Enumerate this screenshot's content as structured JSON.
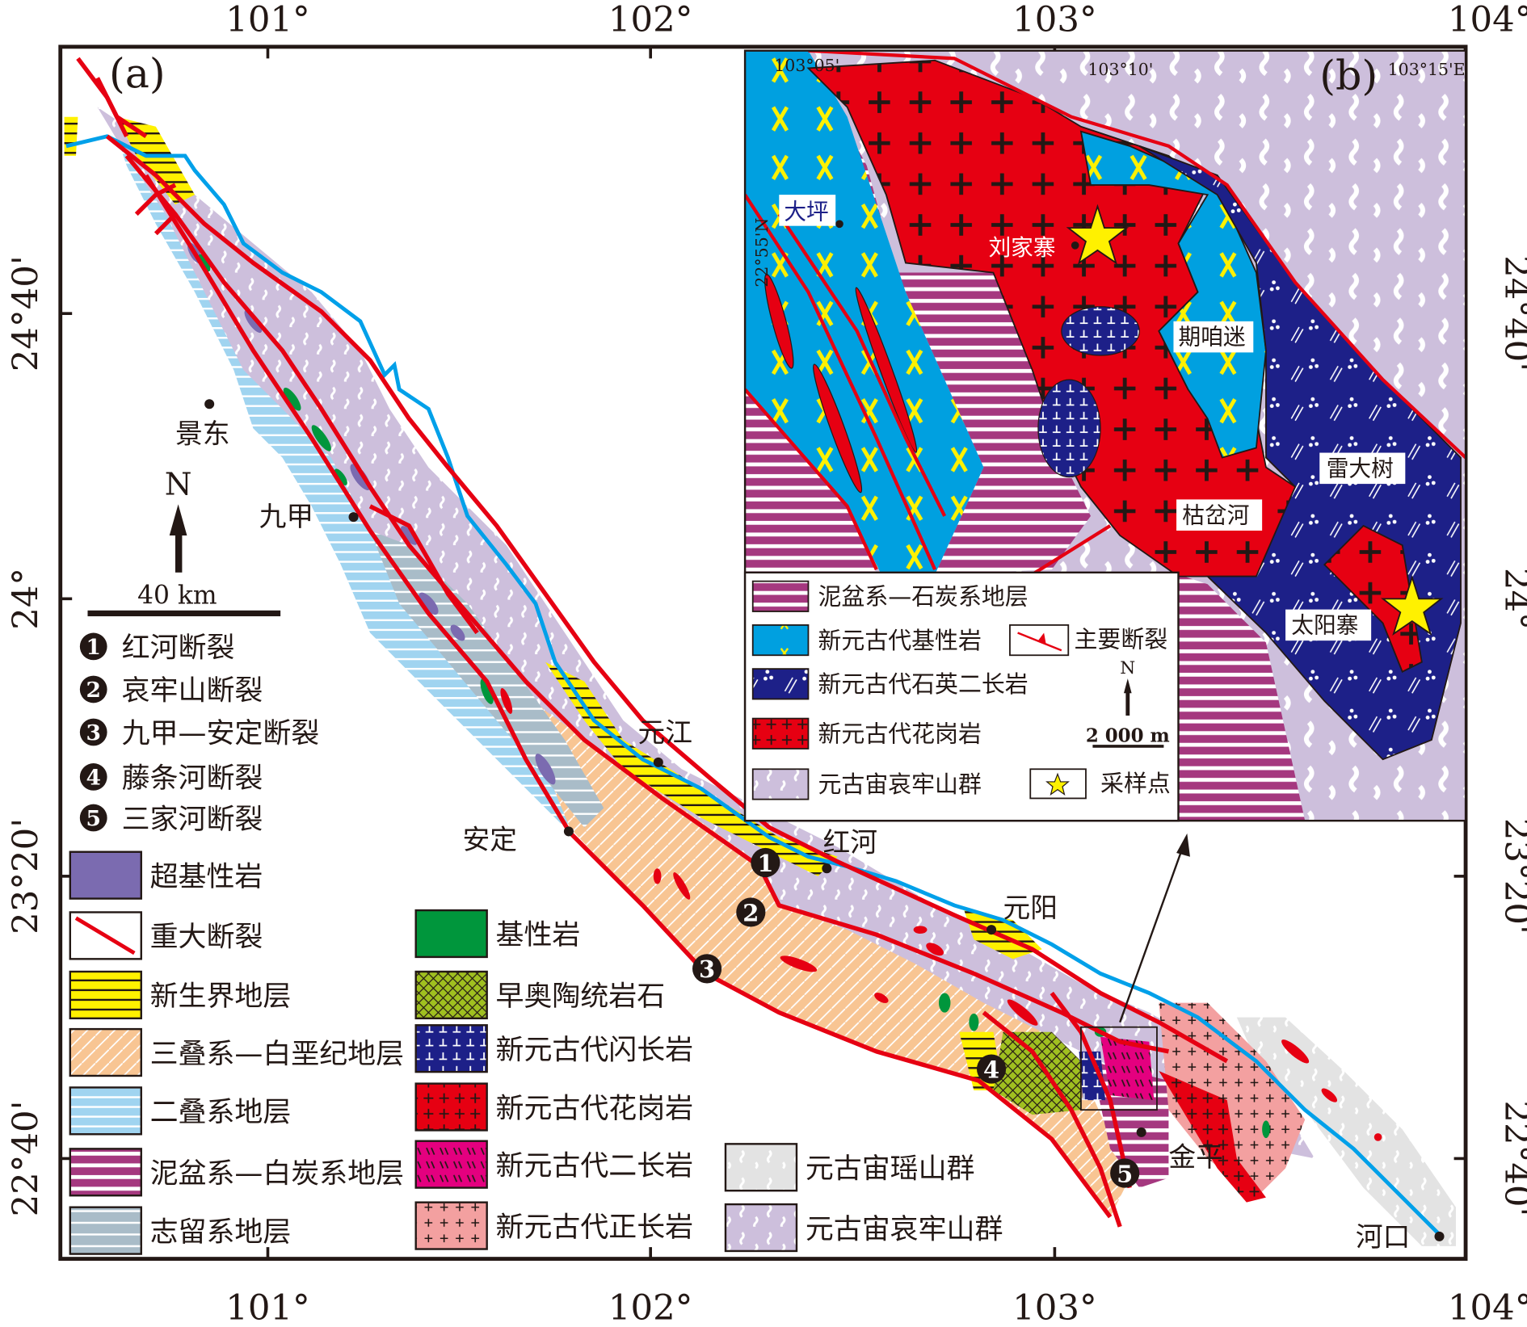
{
  "panel_a_label": "(a)",
  "panel_b_label": "(b)",
  "main_map": {
    "lon_ticks": [
      "101°",
      "102°",
      "103°",
      "104°"
    ],
    "lat_ticks": [
      "24°40'",
      "24°",
      "23°20'",
      "22°40'"
    ],
    "north": "N",
    "scale": "40 km",
    "places": {
      "jingdong": "景东",
      "jiujia": "九甲",
      "yuanjiang": "元江",
      "anding": "安定",
      "honghe": "红河",
      "yuanyang": "元阳",
      "jinping": "金平",
      "hekou": "河口"
    },
    "fault_numbers": [
      "1",
      "2",
      "3",
      "4",
      "5"
    ]
  },
  "fault_legend": [
    {
      "num": "1",
      "label": "红河断裂"
    },
    {
      "num": "2",
      "label": "哀牢山断裂"
    },
    {
      "num": "3",
      "label": "九甲—安定断裂"
    },
    {
      "num": "4",
      "label": "藤条河断裂"
    },
    {
      "num": "5",
      "label": "三家河断裂"
    }
  ],
  "legend": {
    "col1": [
      {
        "label": "超基性岩",
        "fill": "ultrabasic"
      },
      {
        "label": "重大断裂",
        "fill": "fault"
      },
      {
        "label": "新生界地层",
        "fill": "cenozoic"
      },
      {
        "label": "三叠系—白垩纪地层",
        "fill": "triassic"
      },
      {
        "label": "二叠系地层",
        "fill": "permian"
      },
      {
        "label": "泥盆系—白炭系地层",
        "fill": "devonian"
      },
      {
        "label": "志留系地层",
        "fill": "silurian"
      }
    ],
    "col2": [
      {
        "label": "基性岩",
        "fill": "basic"
      },
      {
        "label": "早奥陶统岩石",
        "fill": "ordovician"
      },
      {
        "label": "新元古代闪长岩",
        "fill": "diorite"
      },
      {
        "label": "新元古代花岗岩",
        "fill": "granite"
      },
      {
        "label": "新元古代二长岩",
        "fill": "monzonite"
      },
      {
        "label": "新元古代正长岩",
        "fill": "syenite"
      }
    ],
    "col3": [
      {
        "label": "元古宙瑶山群",
        "fill": "yaoshan"
      },
      {
        "label": "元古宙哀牢山群",
        "fill": "ailaoshan"
      }
    ]
  },
  "inset": {
    "lon_ticks": [
      "103°05'",
      "103°10'",
      "103°15'E"
    ],
    "lat_tick": "22°55'N",
    "places": {
      "daping": "大坪",
      "liujiazhai": "刘家寨",
      "qizanmi": "期咱迷",
      "leidashu": "雷大树",
      "kuchahe": "枯岔河",
      "taiyangzhai": "太阳寨"
    },
    "legend": [
      {
        "label": "泥盆系—石炭系地层",
        "fill": "devonian"
      },
      {
        "label": "新元古代基性岩",
        "fill": "ibasic"
      },
      {
        "label": "新元古代石英二长岩",
        "fill": "qmonz"
      },
      {
        "label": "新元古代花岗岩",
        "fill": "granite"
      },
      {
        "label": "元古宙哀牢山群",
        "fill": "ailaoshan"
      }
    ],
    "fault_label": "主要断裂",
    "sample_label": "采样点",
    "north": "N",
    "scale": "2 000 m"
  },
  "colors": {
    "fault": "#e60012",
    "river": "#00a0e9",
    "ailaoshan": "#cdbfdc",
    "triassic": "#f8c593",
    "granite": "#e60012",
    "navy": "#1d2088",
    "cyan": "#00a0e0",
    "star": "#fff100"
  }
}
